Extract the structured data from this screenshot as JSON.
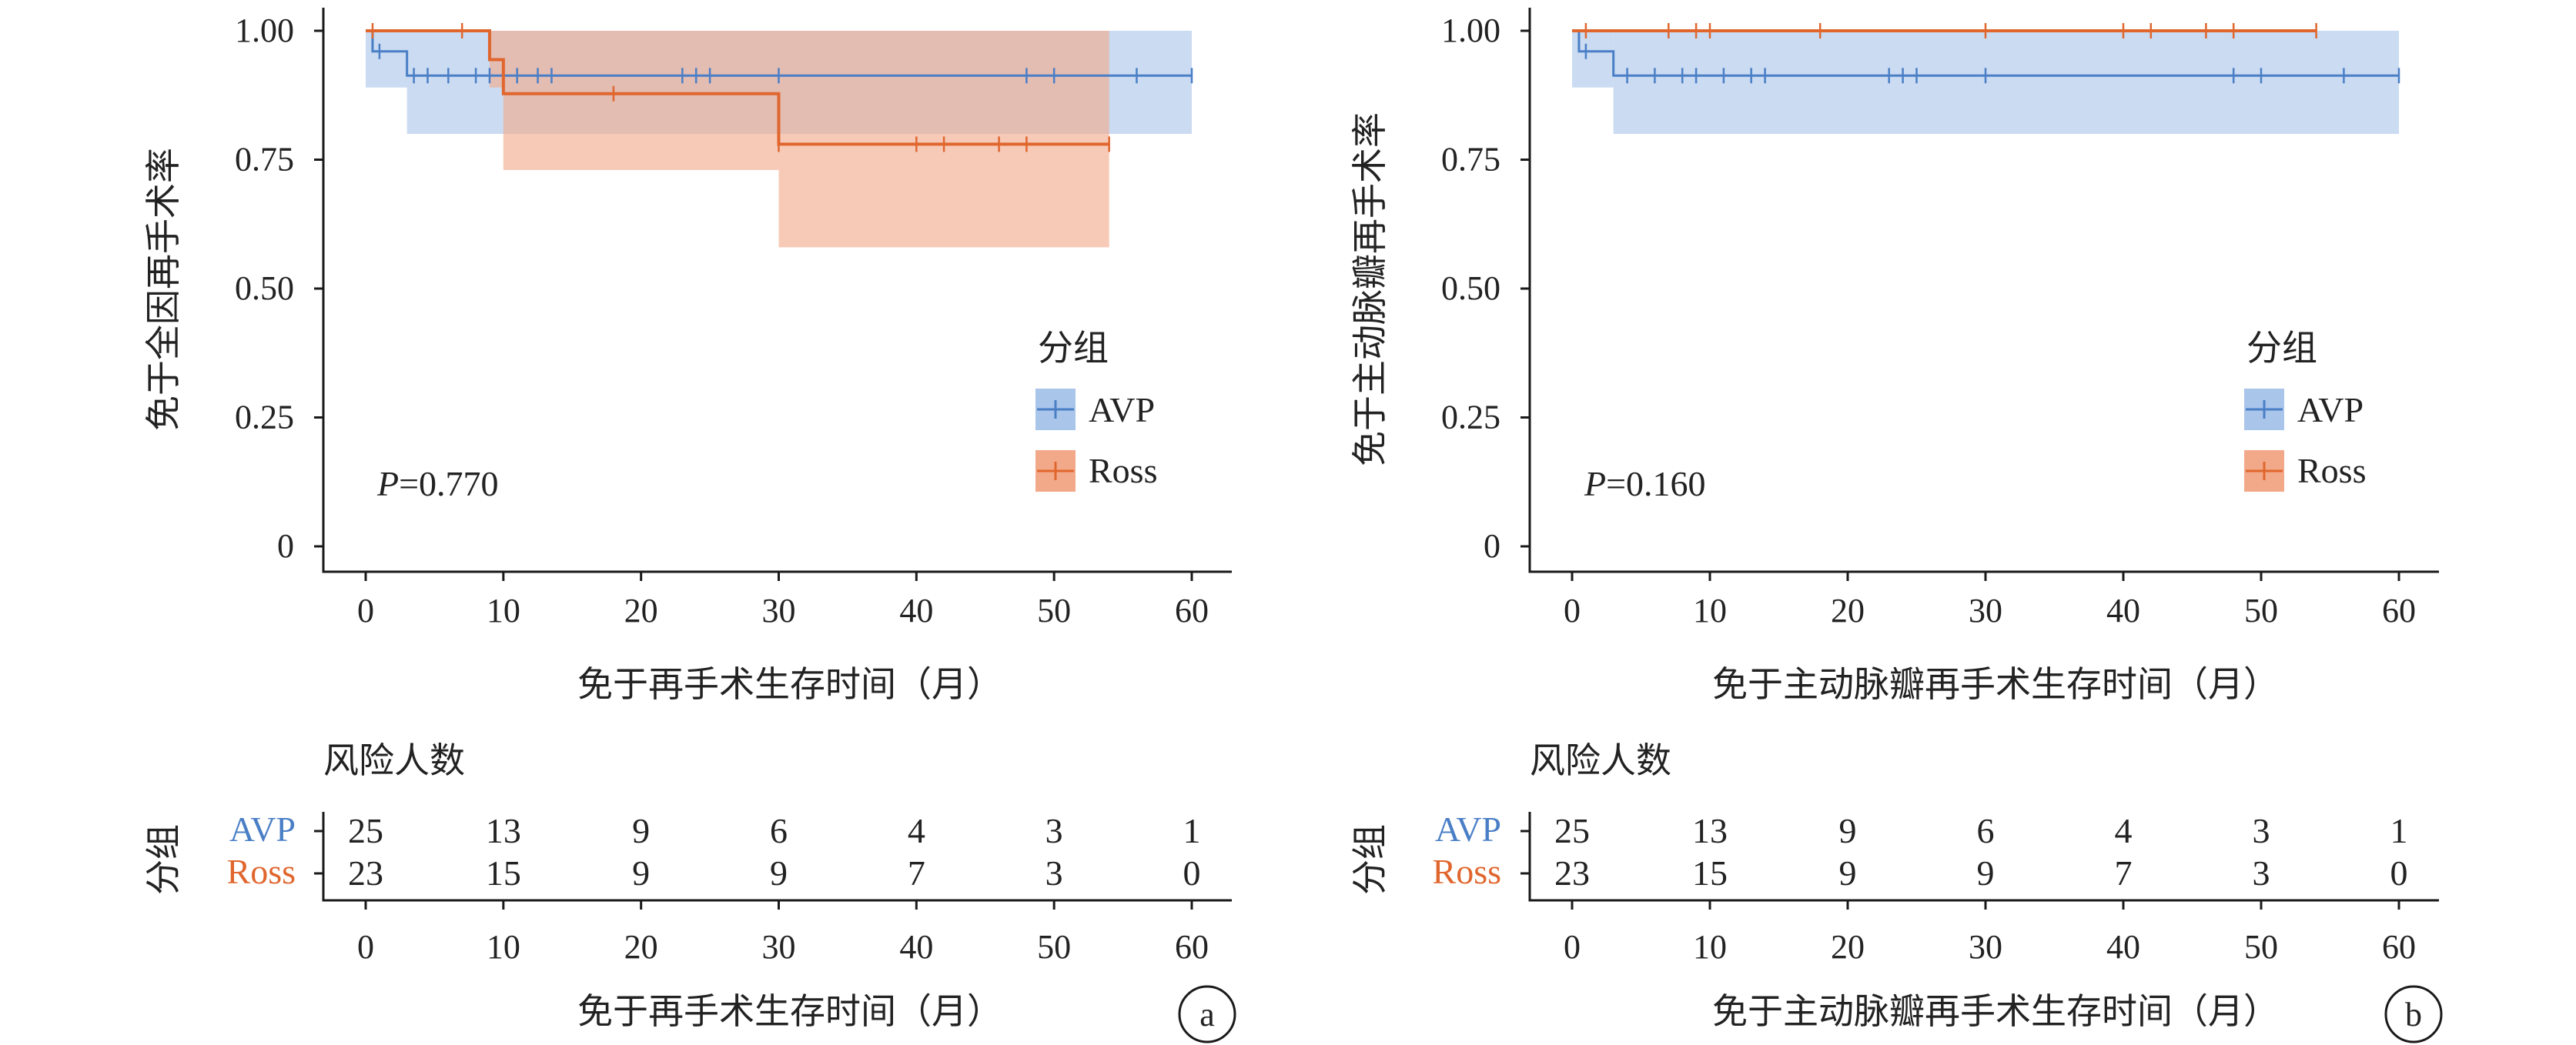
{
  "colors": {
    "avp": "#4a7fc6",
    "ross": "#e0662e",
    "avp_band": "#a9c5ea",
    "ross_band": "#f2a98a",
    "axis": "#1a1a1a"
  },
  "panels": [
    {
      "id": "a",
      "ylabel": "免于全因再手术率",
      "xlabel": "免于再手术生存时间（月）",
      "risk_xlabel": "免于再手术生存时间（月）",
      "p_prefix": "P",
      "p_value": "=0.770",
      "legend_title": "分组",
      "legend_items": [
        "AVP",
        "Ross"
      ],
      "risk_title": "风险人数",
      "risk_group_label": "分组",
      "risk_rows": [
        {
          "name": "AVP",
          "values": [
            "25",
            "13",
            "9",
            "6",
            "4",
            "3",
            "1"
          ]
        },
        {
          "name": "Ross",
          "values": [
            "23",
            "15",
            "9",
            "9",
            "7",
            "3",
            "0"
          ]
        }
      ],
      "panel_label": "a"
    },
    {
      "id": "b",
      "ylabel": "免于主动脉瓣再手术率",
      "xlabel": "免于主动脉瓣再手术生存时间（月）",
      "risk_xlabel": "免于主动脉瓣再手术生存时间（月）",
      "p_prefix": "P",
      "p_value": "=0.160",
      "legend_title": "分组",
      "legend_items": [
        "AVP",
        "Ross"
      ],
      "risk_title": "风险人数",
      "risk_group_label": "分组",
      "risk_rows": [
        {
          "name": "AVP",
          "values": [
            "25",
            "13",
            "9",
            "6",
            "4",
            "3",
            "1"
          ]
        },
        {
          "name": "Ross",
          "values": [
            "23",
            "15",
            "9",
            "9",
            "7",
            "3",
            "0"
          ]
        }
      ],
      "panel_label": "b"
    }
  ],
  "chart_data": [
    {
      "type": "line",
      "subtype": "kaplan-meier step curve with confidence bands",
      "xlabel": "免于再手术生存时间（月）",
      "ylabel": "免于全因再手术率",
      "xlim": [
        0,
        60
      ],
      "ylim": [
        0,
        1
      ],
      "xticks": [
        "0",
        "10",
        "20",
        "30",
        "40",
        "50",
        "60"
      ],
      "yticks": [
        "0",
        "0.25",
        "0.50",
        "0.75",
        "1.00"
      ],
      "legend_title": "分组",
      "legend_position": "center-right",
      "annotation": "P=0.770",
      "series": [
        {
          "name": "AVP",
          "steps": [
            [
              0,
              1.0
            ],
            [
              0.5,
              0.96
            ],
            [
              3,
              0.913
            ],
            [
              60,
              0.913
            ]
          ],
          "ci": [
            [
              0,
              1.0,
              0.89
            ],
            [
              3,
              1.0,
              0.8
            ],
            [
              60,
              1.0,
              0.8
            ]
          ],
          "censor_x": [
            1,
            3.5,
            4.5,
            6,
            8,
            9,
            11,
            12.5,
            13.5,
            23,
            24,
            25,
            30,
            48,
            50,
            56,
            60
          ]
        },
        {
          "name": "Ross",
          "steps": [
            [
              0,
              1.0
            ],
            [
              9,
              0.944
            ],
            [
              10,
              0.878
            ],
            [
              30,
              0.78
            ],
            [
              54,
              0.78
            ]
          ],
          "ci": [
            [
              0,
              1.0,
              1.0
            ],
            [
              9,
              1.0,
              0.89
            ],
            [
              10,
              1.0,
              0.73
            ],
            [
              30,
              1.0,
              0.58
            ],
            [
              54,
              1.0,
              0.58
            ]
          ],
          "censor_x": [
            0.5,
            7,
            18,
            30,
            40,
            42,
            46,
            48,
            54
          ]
        }
      ],
      "risk_table": {
        "time": [
          0,
          10,
          20,
          30,
          40,
          50,
          60
        ],
        "AVP": [
          25,
          13,
          9,
          6,
          4,
          3,
          1
        ],
        "Ross": [
          23,
          15,
          9,
          9,
          7,
          3,
          0
        ]
      }
    },
    {
      "type": "line",
      "subtype": "kaplan-meier step curve with confidence bands",
      "xlabel": "免于主动脉瓣再手术生存时间（月）",
      "ylabel": "免于主动脉瓣再手术率",
      "xlim": [
        0,
        60
      ],
      "ylim": [
        0,
        1
      ],
      "xticks": [
        "0",
        "10",
        "20",
        "30",
        "40",
        "50",
        "60"
      ],
      "yticks": [
        "0",
        "0.25",
        "0.50",
        "0.75",
        "1.00"
      ],
      "legend_title": "分组",
      "legend_position": "center-right",
      "annotation": "P=0.160",
      "series": [
        {
          "name": "AVP",
          "steps": [
            [
              0,
              1.0
            ],
            [
              0.5,
              0.96
            ],
            [
              3,
              0.913
            ],
            [
              60,
              0.913
            ]
          ],
          "ci": [
            [
              0,
              1.0,
              0.89
            ],
            [
              3,
              1.0,
              0.8
            ],
            [
              60,
              1.0,
              0.8
            ]
          ],
          "censor_x": [
            1,
            4,
            6,
            8,
            9,
            11,
            13,
            14,
            23,
            24,
            25,
            30,
            48,
            50,
            56,
            60
          ]
        },
        {
          "name": "Ross",
          "steps": [
            [
              0,
              1.0
            ],
            [
              54,
              1.0
            ]
          ],
          "ci": [
            [
              0,
              1.0,
              1.0
            ],
            [
              54,
              1.0,
              1.0
            ]
          ],
          "censor_x": [
            1,
            7,
            9,
            10,
            18,
            30,
            40,
            42,
            46,
            48,
            54
          ]
        }
      ],
      "risk_table": {
        "time": [
          0,
          10,
          20,
          30,
          40,
          50,
          60
        ],
        "AVP": [
          25,
          13,
          9,
          6,
          4,
          3,
          1
        ],
        "Ross": [
          23,
          15,
          9,
          9,
          7,
          3,
          0
        ]
      }
    }
  ]
}
